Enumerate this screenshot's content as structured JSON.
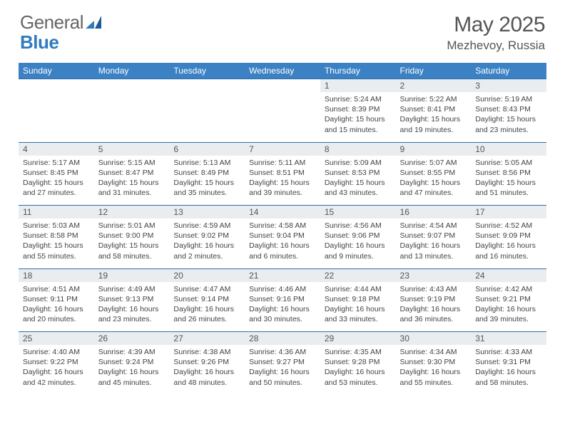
{
  "brand": {
    "general": "General",
    "blue": "Blue"
  },
  "title": "May 2025",
  "location": "Mezhevoy, Russia",
  "colors": {
    "header_bg": "#3b81c3",
    "header_text": "#ffffff",
    "daynum_bg": "#e9edf0",
    "row_border": "#2f6fa8",
    "text": "#444444",
    "title_text": "#555555",
    "brand_blue": "#2f7bbf",
    "brand_gray": "#666666"
  },
  "weekdays": [
    "Sunday",
    "Monday",
    "Tuesday",
    "Wednesday",
    "Thursday",
    "Friday",
    "Saturday"
  ],
  "weeks": [
    [
      null,
      null,
      null,
      null,
      {
        "n": "1",
        "sr": "5:24 AM",
        "ss": "8:39 PM",
        "dl": "15 hours and 15 minutes."
      },
      {
        "n": "2",
        "sr": "5:22 AM",
        "ss": "8:41 PM",
        "dl": "15 hours and 19 minutes."
      },
      {
        "n": "3",
        "sr": "5:19 AM",
        "ss": "8:43 PM",
        "dl": "15 hours and 23 minutes."
      }
    ],
    [
      {
        "n": "4",
        "sr": "5:17 AM",
        "ss": "8:45 PM",
        "dl": "15 hours and 27 minutes."
      },
      {
        "n": "5",
        "sr": "5:15 AM",
        "ss": "8:47 PM",
        "dl": "15 hours and 31 minutes."
      },
      {
        "n": "6",
        "sr": "5:13 AM",
        "ss": "8:49 PM",
        "dl": "15 hours and 35 minutes."
      },
      {
        "n": "7",
        "sr": "5:11 AM",
        "ss": "8:51 PM",
        "dl": "15 hours and 39 minutes."
      },
      {
        "n": "8",
        "sr": "5:09 AM",
        "ss": "8:53 PM",
        "dl": "15 hours and 43 minutes."
      },
      {
        "n": "9",
        "sr": "5:07 AM",
        "ss": "8:55 PM",
        "dl": "15 hours and 47 minutes."
      },
      {
        "n": "10",
        "sr": "5:05 AM",
        "ss": "8:56 PM",
        "dl": "15 hours and 51 minutes."
      }
    ],
    [
      {
        "n": "11",
        "sr": "5:03 AM",
        "ss": "8:58 PM",
        "dl": "15 hours and 55 minutes."
      },
      {
        "n": "12",
        "sr": "5:01 AM",
        "ss": "9:00 PM",
        "dl": "15 hours and 58 minutes."
      },
      {
        "n": "13",
        "sr": "4:59 AM",
        "ss": "9:02 PM",
        "dl": "16 hours and 2 minutes."
      },
      {
        "n": "14",
        "sr": "4:58 AM",
        "ss": "9:04 PM",
        "dl": "16 hours and 6 minutes."
      },
      {
        "n": "15",
        "sr": "4:56 AM",
        "ss": "9:06 PM",
        "dl": "16 hours and 9 minutes."
      },
      {
        "n": "16",
        "sr": "4:54 AM",
        "ss": "9:07 PM",
        "dl": "16 hours and 13 minutes."
      },
      {
        "n": "17",
        "sr": "4:52 AM",
        "ss": "9:09 PM",
        "dl": "16 hours and 16 minutes."
      }
    ],
    [
      {
        "n": "18",
        "sr": "4:51 AM",
        "ss": "9:11 PM",
        "dl": "16 hours and 20 minutes."
      },
      {
        "n": "19",
        "sr": "4:49 AM",
        "ss": "9:13 PM",
        "dl": "16 hours and 23 minutes."
      },
      {
        "n": "20",
        "sr": "4:47 AM",
        "ss": "9:14 PM",
        "dl": "16 hours and 26 minutes."
      },
      {
        "n": "21",
        "sr": "4:46 AM",
        "ss": "9:16 PM",
        "dl": "16 hours and 30 minutes."
      },
      {
        "n": "22",
        "sr": "4:44 AM",
        "ss": "9:18 PM",
        "dl": "16 hours and 33 minutes."
      },
      {
        "n": "23",
        "sr": "4:43 AM",
        "ss": "9:19 PM",
        "dl": "16 hours and 36 minutes."
      },
      {
        "n": "24",
        "sr": "4:42 AM",
        "ss": "9:21 PM",
        "dl": "16 hours and 39 minutes."
      }
    ],
    [
      {
        "n": "25",
        "sr": "4:40 AM",
        "ss": "9:22 PM",
        "dl": "16 hours and 42 minutes."
      },
      {
        "n": "26",
        "sr": "4:39 AM",
        "ss": "9:24 PM",
        "dl": "16 hours and 45 minutes."
      },
      {
        "n": "27",
        "sr": "4:38 AM",
        "ss": "9:26 PM",
        "dl": "16 hours and 48 minutes."
      },
      {
        "n": "28",
        "sr": "4:36 AM",
        "ss": "9:27 PM",
        "dl": "16 hours and 50 minutes."
      },
      {
        "n": "29",
        "sr": "4:35 AM",
        "ss": "9:28 PM",
        "dl": "16 hours and 53 minutes."
      },
      {
        "n": "30",
        "sr": "4:34 AM",
        "ss": "9:30 PM",
        "dl": "16 hours and 55 minutes."
      },
      {
        "n": "31",
        "sr": "4:33 AM",
        "ss": "9:31 PM",
        "dl": "16 hours and 58 minutes."
      }
    ]
  ],
  "labels": {
    "sunrise": "Sunrise:",
    "sunset": "Sunset:",
    "daylight": "Daylight:"
  }
}
